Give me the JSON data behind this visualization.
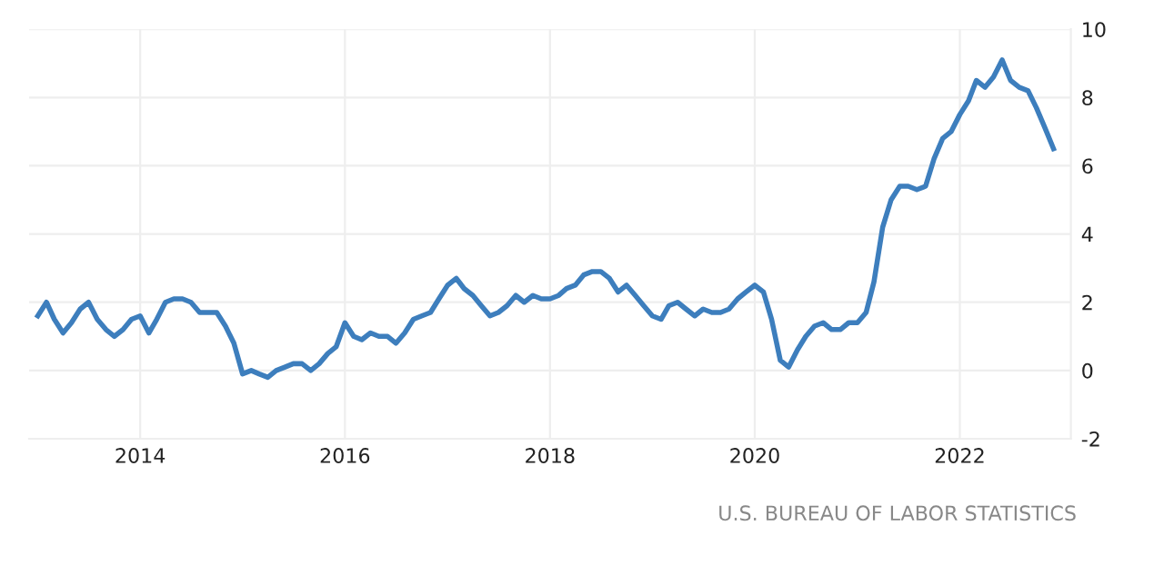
{
  "chart_data": {
    "type": "line",
    "annotations": [
      "U.S. BUREAU OF LABOR STATISTICS"
    ],
    "x": [
      "2013-01",
      "2013-02",
      "2013-03",
      "2013-04",
      "2013-05",
      "2013-06",
      "2013-07",
      "2013-08",
      "2013-09",
      "2013-10",
      "2013-11",
      "2013-12",
      "2014-01",
      "2014-02",
      "2014-03",
      "2014-04",
      "2014-05",
      "2014-06",
      "2014-07",
      "2014-08",
      "2014-09",
      "2014-10",
      "2014-11",
      "2014-12",
      "2015-01",
      "2015-02",
      "2015-03",
      "2015-04",
      "2015-05",
      "2015-06",
      "2015-07",
      "2015-08",
      "2015-09",
      "2015-10",
      "2015-11",
      "2015-12",
      "2016-01",
      "2016-02",
      "2016-03",
      "2016-04",
      "2016-05",
      "2016-06",
      "2016-07",
      "2016-08",
      "2016-09",
      "2016-10",
      "2016-11",
      "2016-12",
      "2017-01",
      "2017-02",
      "2017-03",
      "2017-04",
      "2017-05",
      "2017-06",
      "2017-07",
      "2017-08",
      "2017-09",
      "2017-10",
      "2017-11",
      "2017-12",
      "2018-01",
      "2018-02",
      "2018-03",
      "2018-04",
      "2018-05",
      "2018-06",
      "2018-07",
      "2018-08",
      "2018-09",
      "2018-10",
      "2018-11",
      "2018-12",
      "2019-01",
      "2019-02",
      "2019-03",
      "2019-04",
      "2019-05",
      "2019-06",
      "2019-07",
      "2019-08",
      "2019-09",
      "2019-10",
      "2019-11",
      "2019-12",
      "2020-01",
      "2020-02",
      "2020-03",
      "2020-04",
      "2020-05",
      "2020-06",
      "2020-07",
      "2020-08",
      "2020-09",
      "2020-10",
      "2020-11",
      "2020-12",
      "2021-01",
      "2021-02",
      "2021-03",
      "2021-04",
      "2021-05",
      "2021-06",
      "2021-07",
      "2021-08",
      "2021-09",
      "2021-10",
      "2021-11",
      "2021-12",
      "2022-01",
      "2022-02",
      "2022-03",
      "2022-04",
      "2022-05",
      "2022-06",
      "2022-07",
      "2022-08",
      "2022-09",
      "2022-10",
      "2022-11",
      "2022-12"
    ],
    "series": [
      {
        "color": "#3d7ebd",
        "values": [
          1.6,
          2.0,
          1.5,
          1.1,
          1.4,
          1.8,
          2.0,
          1.5,
          1.2,
          1.0,
          1.2,
          1.5,
          1.6,
          1.1,
          1.5,
          2.0,
          2.1,
          2.1,
          2.0,
          1.7,
          1.7,
          1.7,
          1.3,
          0.8,
          -0.1,
          0.0,
          -0.1,
          -0.2,
          0.0,
          0.1,
          0.2,
          0.2,
          0.0,
          0.2,
          0.5,
          0.7,
          1.4,
          1.0,
          0.9,
          1.1,
          1.0,
          1.0,
          0.8,
          1.1,
          1.5,
          1.6,
          1.7,
          2.1,
          2.5,
          2.7,
          2.4,
          2.2,
          1.9,
          1.6,
          1.7,
          1.9,
          2.2,
          2.0,
          2.2,
          2.1,
          2.1,
          2.2,
          2.4,
          2.5,
          2.8,
          2.9,
          2.9,
          2.7,
          2.3,
          2.5,
          2.2,
          1.9,
          1.6,
          1.5,
          1.9,
          2.0,
          1.8,
          1.6,
          1.8,
          1.7,
          1.7,
          1.8,
          2.1,
          2.3,
          2.5,
          2.3,
          1.5,
          0.3,
          0.1,
          0.6,
          1.0,
          1.3,
          1.4,
          1.2,
          1.2,
          1.4,
          1.4,
          1.7,
          2.6,
          4.2,
          5.0,
          5.4,
          5.4,
          5.3,
          5.4,
          6.2,
          6.8,
          7.0,
          7.5,
          7.9,
          8.5,
          8.3,
          8.6,
          9.1,
          8.5,
          8.3,
          8.2,
          7.7,
          7.1,
          6.5
        ]
      }
    ],
    "xlim": [
      "2012-12-01",
      "2023-02-01"
    ],
    "xticks": [
      {
        "value": "2014-01-01",
        "label": "2014"
      },
      {
        "value": "2016-01-01",
        "label": "2016"
      },
      {
        "value": "2018-01-01",
        "label": "2018"
      },
      {
        "value": "2020-01-01",
        "label": "2020"
      },
      {
        "value": "2022-01-01",
        "label": "2022"
      }
    ],
    "ylim": [
      -2,
      10
    ],
    "yticks": [
      -2,
      0,
      2,
      4,
      6,
      8,
      10
    ],
    "grid": true,
    "marker": "none",
    "line_style": "solid"
  }
}
